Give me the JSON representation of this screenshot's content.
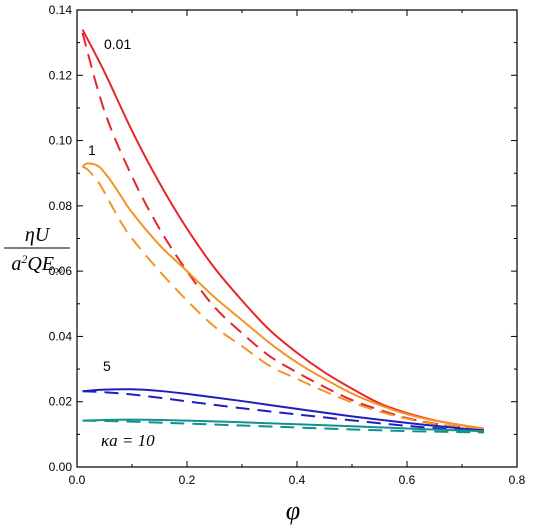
{
  "chart_data": {
    "type": "line",
    "title": "",
    "xlabel": "φ",
    "ylabel": {
      "numerator": "ηU",
      "denominator_a": "a",
      "denominator_exp": "2",
      "denominator_q": "QE",
      "denominator_sub": "∞"
    },
    "xlim": [
      0,
      0.8
    ],
    "ylim": [
      0,
      0.14
    ],
    "xticks": [
      "0.0",
      "0.2",
      "0.4",
      "0.6",
      "0.8"
    ],
    "yticks": [
      "0.00",
      "0.02",
      "0.04",
      "0.06",
      "0.08",
      "0.10",
      "0.12",
      "0.14"
    ],
    "grid": false,
    "annotations": [
      {
        "id": "ka-001",
        "text": "0.01"
      },
      {
        "id": "ka-1",
        "text": "1"
      },
      {
        "id": "ka-5",
        "text": "5"
      },
      {
        "id": "ka-10",
        "text": "κa = 10"
      }
    ],
    "series": [
      {
        "group": "0.01",
        "style": "solid",
        "color": "#e8252b",
        "x": [
          0.01,
          0.05,
          0.1,
          0.15,
          0.2,
          0.25,
          0.3,
          0.35,
          0.4,
          0.45,
          0.5,
          0.55,
          0.6,
          0.65,
          0.7,
          0.74
        ],
        "y": [
          0.134,
          0.121,
          0.103,
          0.087,
          0.073,
          0.061,
          0.051,
          0.042,
          0.035,
          0.029,
          0.024,
          0.0195,
          0.0165,
          0.0143,
          0.0128,
          0.0117
        ]
      },
      {
        "group": "0.01",
        "style": "dashed",
        "color": "#e8252b",
        "x": [
          0.01,
          0.05,
          0.1,
          0.15,
          0.2,
          0.25,
          0.3,
          0.35,
          0.4,
          0.45,
          0.5,
          0.55,
          0.6,
          0.65,
          0.7,
          0.74
        ],
        "y": [
          0.133,
          0.109,
          0.089,
          0.073,
          0.06,
          0.049,
          0.041,
          0.034,
          0.029,
          0.0245,
          0.0205,
          0.0175,
          0.015,
          0.0133,
          0.0122,
          0.0115
        ]
      },
      {
        "group": "1",
        "style": "solid",
        "color": "#f39425",
        "x": [
          0.01,
          0.02,
          0.04,
          0.06,
          0.08,
          0.1,
          0.15,
          0.2,
          0.25,
          0.3,
          0.35,
          0.4,
          0.45,
          0.5,
          0.55,
          0.6,
          0.65,
          0.7,
          0.74
        ],
        "y": [
          0.092,
          0.093,
          0.092,
          0.088,
          0.083,
          0.078,
          0.068,
          0.06,
          0.052,
          0.045,
          0.038,
          0.032,
          0.027,
          0.0225,
          0.019,
          0.0162,
          0.0142,
          0.0128,
          0.0118
        ]
      },
      {
        "group": "1",
        "style": "dashed",
        "color": "#f39425",
        "x": [
          0.01,
          0.02,
          0.04,
          0.06,
          0.08,
          0.1,
          0.15,
          0.2,
          0.25,
          0.3,
          0.35,
          0.4,
          0.45,
          0.5,
          0.55,
          0.6,
          0.65,
          0.7,
          0.74
        ],
        "y": [
          0.092,
          0.091,
          0.087,
          0.081,
          0.075,
          0.07,
          0.06,
          0.051,
          0.043,
          0.037,
          0.031,
          0.027,
          0.0232,
          0.0198,
          0.017,
          0.0148,
          0.0132,
          0.0122,
          0.0115
        ]
      },
      {
        "group": "5",
        "style": "solid",
        "color": "#1f1fc1",
        "x": [
          0.01,
          0.05,
          0.1,
          0.15,
          0.2,
          0.3,
          0.4,
          0.5,
          0.6,
          0.7,
          0.74
        ],
        "y": [
          0.0232,
          0.0237,
          0.0238,
          0.0233,
          0.0224,
          0.0202,
          0.0178,
          0.0155,
          0.0135,
          0.0118,
          0.0112
        ]
      },
      {
        "group": "5",
        "style": "dashed",
        "color": "#1f1fc1",
        "x": [
          0.01,
          0.05,
          0.1,
          0.15,
          0.2,
          0.3,
          0.4,
          0.5,
          0.6,
          0.7,
          0.74
        ],
        "y": [
          0.0232,
          0.0229,
          0.0222,
          0.0212,
          0.0201,
          0.018,
          0.0161,
          0.0143,
          0.0126,
          0.0113,
          0.0108
        ]
      },
      {
        "group": "10",
        "style": "solid",
        "color": "#13918f",
        "x": [
          0.01,
          0.05,
          0.1,
          0.15,
          0.2,
          0.3,
          0.4,
          0.5,
          0.6,
          0.7,
          0.74
        ],
        "y": [
          0.0142,
          0.0144,
          0.0145,
          0.0144,
          0.0142,
          0.0137,
          0.0131,
          0.0125,
          0.0118,
          0.0112,
          0.011
        ]
      },
      {
        "group": "10",
        "style": "dashed",
        "color": "#13918f",
        "x": [
          0.01,
          0.05,
          0.1,
          0.15,
          0.2,
          0.3,
          0.4,
          0.5,
          0.6,
          0.7,
          0.74
        ],
        "y": [
          0.0142,
          0.0141,
          0.0139,
          0.0136,
          0.0133,
          0.0127,
          0.0121,
          0.0115,
          0.011,
          0.0107,
          0.0106
        ]
      }
    ]
  }
}
